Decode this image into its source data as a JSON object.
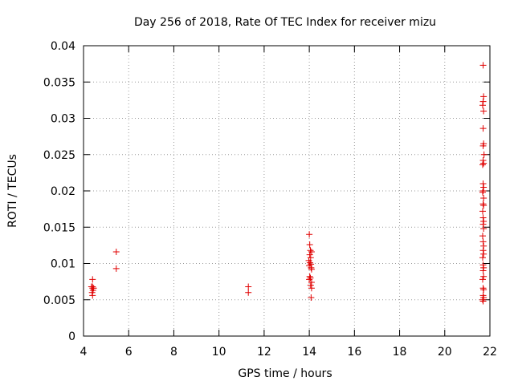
{
  "chart_data": {
    "type": "scatter",
    "title": "Day 256 of 2018, Rate Of TEC Index for receiver mizu",
    "xlabel": "GPS time / hours",
    "ylabel": "ROTI / TECUs",
    "xlim": [
      4,
      22
    ],
    "ylim": [
      0,
      0.04
    ],
    "grid": true,
    "marker": "+",
    "series_color": "#e00000",
    "xticks": [
      4,
      6,
      8,
      10,
      12,
      14,
      16,
      18,
      20,
      22
    ],
    "xtick_labels": [
      "4",
      "6",
      "8",
      "10",
      "12",
      "14",
      "16",
      "18",
      "20",
      "22"
    ],
    "yticks": [
      0,
      0.005,
      0.01,
      0.015,
      0.02,
      0.025,
      0.03,
      0.035,
      0.04
    ],
    "ytick_labels": [
      "0",
      "0.005",
      "0.01",
      "0.015",
      "0.02",
      "0.025",
      "0.03",
      "0.035",
      "0.04"
    ],
    "series": [
      {
        "name": "ROTI",
        "points": [
          [
            4.4,
            0.0078
          ],
          [
            4.4,
            0.0068
          ],
          [
            4.4,
            0.0066
          ],
          [
            4.42,
            0.0063
          ],
          [
            4.38,
            0.006
          ],
          [
            4.4,
            0.0056
          ],
          [
            4.45,
            0.0066
          ],
          [
            4.35,
            0.0068
          ],
          [
            5.45,
            0.0116
          ],
          [
            5.45,
            0.0093
          ],
          [
            11.3,
            0.0068
          ],
          [
            11.3,
            0.006
          ],
          [
            14.0,
            0.014
          ],
          [
            14.02,
            0.0126
          ],
          [
            14.05,
            0.0118
          ],
          [
            14.1,
            0.0116
          ],
          [
            14.02,
            0.0112
          ],
          [
            14.06,
            0.0108
          ],
          [
            13.98,
            0.0104
          ],
          [
            14.03,
            0.0101
          ],
          [
            14.07,
            0.0099
          ],
          [
            14.0,
            0.0097
          ],
          [
            14.08,
            0.0094
          ],
          [
            14.1,
            0.0092
          ],
          [
            14.02,
            0.0082
          ],
          [
            14.05,
            0.008
          ],
          [
            14.0,
            0.0078
          ],
          [
            14.1,
            0.0074
          ],
          [
            14.06,
            0.007
          ],
          [
            14.1,
            0.0066
          ],
          [
            14.08,
            0.0053
          ],
          [
            21.7,
            0.0373
          ],
          [
            21.72,
            0.033
          ],
          [
            21.7,
            0.0323
          ],
          [
            21.68,
            0.0318
          ],
          [
            21.72,
            0.031
          ],
          [
            21.7,
            0.0286
          ],
          [
            21.72,
            0.0265
          ],
          [
            21.7,
            0.0262
          ],
          [
            21.74,
            0.025
          ],
          [
            21.7,
            0.0242
          ],
          [
            21.72,
            0.0238
          ],
          [
            21.68,
            0.0236
          ],
          [
            21.7,
            0.021
          ],
          [
            21.72,
            0.0205
          ],
          [
            21.7,
            0.02
          ],
          [
            21.68,
            0.0198
          ],
          [
            21.72,
            0.019
          ],
          [
            21.7,
            0.0182
          ],
          [
            21.72,
            0.018
          ],
          [
            21.68,
            0.0172
          ],
          [
            21.7,
            0.0163
          ],
          [
            21.72,
            0.0158
          ],
          [
            21.7,
            0.0154
          ],
          [
            21.72,
            0.0148
          ],
          [
            21.68,
            0.0138
          ],
          [
            21.7,
            0.013
          ],
          [
            21.72,
            0.0124
          ],
          [
            21.7,
            0.0118
          ],
          [
            21.72,
            0.0113
          ],
          [
            21.68,
            0.0108
          ],
          [
            21.7,
            0.0098
          ],
          [
            21.72,
            0.0094
          ],
          [
            21.7,
            0.009
          ],
          [
            21.72,
            0.0082
          ],
          [
            21.68,
            0.0078
          ],
          [
            21.7,
            0.0066
          ],
          [
            21.72,
            0.0064
          ],
          [
            21.7,
            0.0056
          ],
          [
            21.72,
            0.0053
          ],
          [
            21.68,
            0.005
          ],
          [
            21.7,
            0.0048
          ]
        ]
      }
    ]
  }
}
